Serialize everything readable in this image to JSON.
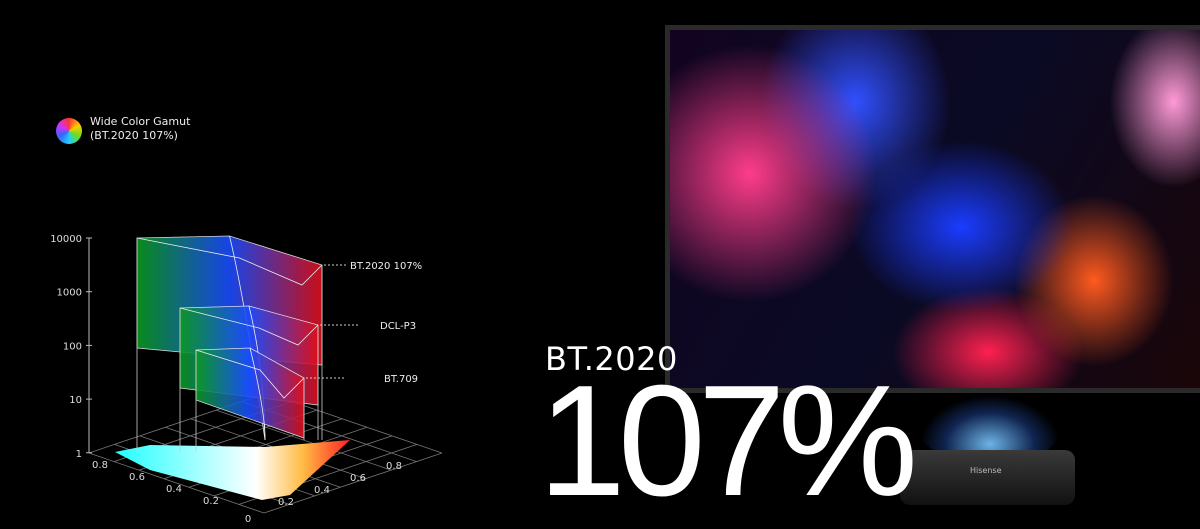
{
  "legend": {
    "icon": "color-wheel-icon",
    "line1": "Wide Color Gamut",
    "line2": "(BT.2020 107%)"
  },
  "headline": {
    "standard": "BT.2020",
    "percent": "107%"
  },
  "chart_data": {
    "type": "3d-volume",
    "z_scale": "log",
    "z_ticks": [
      "10000",
      "1000",
      "100",
      "10",
      "1"
    ],
    "x_ticks": [
      "0.8",
      "0.6",
      "0.4",
      "0.2",
      "0"
    ],
    "y_ticks": [
      "0.2",
      "0.4",
      "0.6",
      "0.8"
    ],
    "volumes": [
      {
        "label": "BT.2020 107%",
        "peak": 10000
      },
      {
        "label": "DCL-P3",
        "peak": 1000
      },
      {
        "label": "BT.709",
        "peak": 100
      }
    ]
  },
  "product": {
    "brand": "Hisense"
  }
}
